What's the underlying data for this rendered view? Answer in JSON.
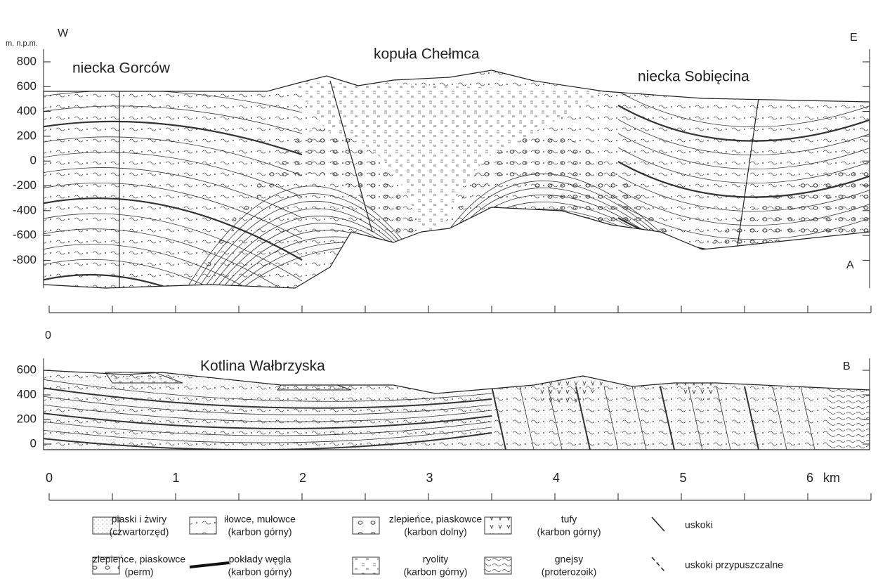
{
  "section_a": {
    "unit": "m. n.p.m.",
    "west": "W",
    "east": "E",
    "label": "A",
    "regions": [
      "niecka Gorców",
      "kopuła Chełmca",
      "niecka Sobięcina"
    ],
    "elevations": [
      800,
      600,
      400,
      200,
      0,
      -200,
      -400,
      -600,
      -800
    ],
    "origin": "0"
  },
  "section_b": {
    "title": "Kotlina Wałbrzyska",
    "label": "B",
    "elevations": [
      600,
      400,
      200,
      0
    ]
  },
  "distance": {
    "ticks": [
      0,
      1,
      2,
      3,
      4,
      5,
      6
    ],
    "unit": "km"
  },
  "legend": [
    {
      "name": "piaski i żwiry",
      "age": "(czwartorzęd)"
    },
    {
      "name": "iłowce, mułowce",
      "age": "(karbon górny)"
    },
    {
      "name": "zlepieńce, piaskowce",
      "age": "(karbon dolny)"
    },
    {
      "name": "tufy",
      "age": "(karbon górny)"
    },
    {
      "name": "uskoki"
    },
    {
      "name": "zlepieńce, piaskowce",
      "age": "(perm)"
    },
    {
      "name": "pokłady węgla",
      "age": "(karbon górny)"
    },
    {
      "name": "ryolity",
      "age": "(karbon górny)"
    },
    {
      "name": "gnejsy",
      "age": "(proterozoik)"
    },
    {
      "name": "uskoki przypuszczalne"
    }
  ]
}
